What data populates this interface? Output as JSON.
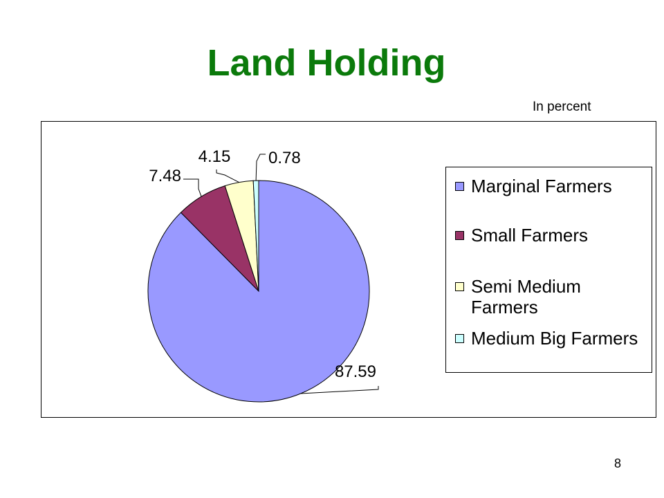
{
  "slide": {
    "title": "Land Holding",
    "unit_note": "In percent",
    "page_number": "8"
  },
  "chart_data": {
    "type": "pie",
    "title": "",
    "categories": [
      "Marginal Farmers",
      "Small Farmers",
      "Semi Medium Farmers",
      "Medium Big Farmers"
    ],
    "values": [
      87.59,
      7.48,
      4.15,
      0.78
    ],
    "data_labels": [
      "87.59",
      "7.48",
      "4.15",
      "0.78"
    ],
    "colors": [
      "#9999ff",
      "#993366",
      "#ffffcc",
      "#ccffff"
    ],
    "start_angle_deg": 0,
    "direction": "clockwise",
    "legend": {
      "placement": "right",
      "items": [
        "Marginal Farmers",
        "Small Farmers",
        "Semi Medium Farmers",
        "Medium Big Farmers"
      ]
    }
  }
}
